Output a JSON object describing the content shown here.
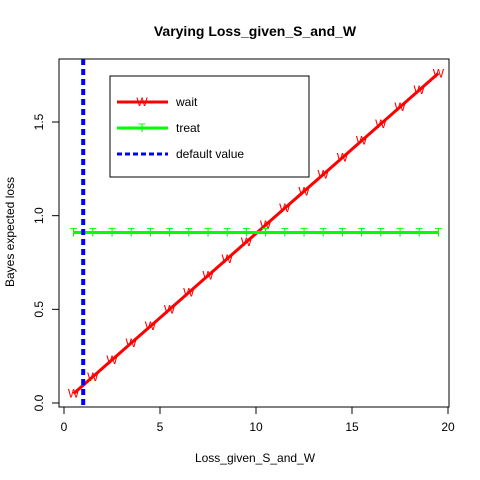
{
  "chart_data": {
    "type": "line",
    "title": "Varying Loss_given_S_and_W",
    "xlabel": "Loss_given_S_and_W",
    "ylabel": "Bayes expected loss",
    "xlim": [
      0.5,
      19.5
    ],
    "ylim": [
      0.05,
      1.76
    ],
    "xticks": [
      0,
      5,
      10,
      15,
      20
    ],
    "yticks": [
      0.0,
      0.5,
      1.0,
      1.5
    ],
    "xtick_labels": [
      "0",
      "5",
      "10",
      "15",
      "20"
    ],
    "ytick_labels": [
      "0.0",
      "0.5",
      "1.0",
      "1.5"
    ],
    "x": [
      0.5,
      1.5,
      2.5,
      3.5,
      4.5,
      5.5,
      6.5,
      7.5,
      8.5,
      9.5,
      10.5,
      11.5,
      12.5,
      13.5,
      14.5,
      15.5,
      16.5,
      17.5,
      18.5,
      19.5
    ],
    "series": [
      {
        "name": "wait",
        "marker": "W",
        "color": "#ff0000",
        "values": [
          0.05,
          0.14,
          0.23,
          0.32,
          0.41,
          0.5,
          0.59,
          0.68,
          0.77,
          0.86,
          0.95,
          1.04,
          1.13,
          1.22,
          1.31,
          1.4,
          1.49,
          1.58,
          1.67,
          1.76
        ]
      },
      {
        "name": "treat",
        "marker": "T",
        "color": "#00ff00",
        "values": [
          0.91,
          0.91,
          0.91,
          0.91,
          0.91,
          0.91,
          0.91,
          0.91,
          0.91,
          0.91,
          0.91,
          0.91,
          0.91,
          0.91,
          0.91,
          0.91,
          0.91,
          0.91,
          0.91,
          0.91
        ]
      }
    ],
    "reference_line": {
      "name": "default value",
      "x": 1,
      "color": "#0000ff",
      "style": "dashed"
    },
    "legend": {
      "placement": "top-left",
      "entries": [
        "wait",
        "treat",
        "default value"
      ]
    },
    "grid": false
  }
}
